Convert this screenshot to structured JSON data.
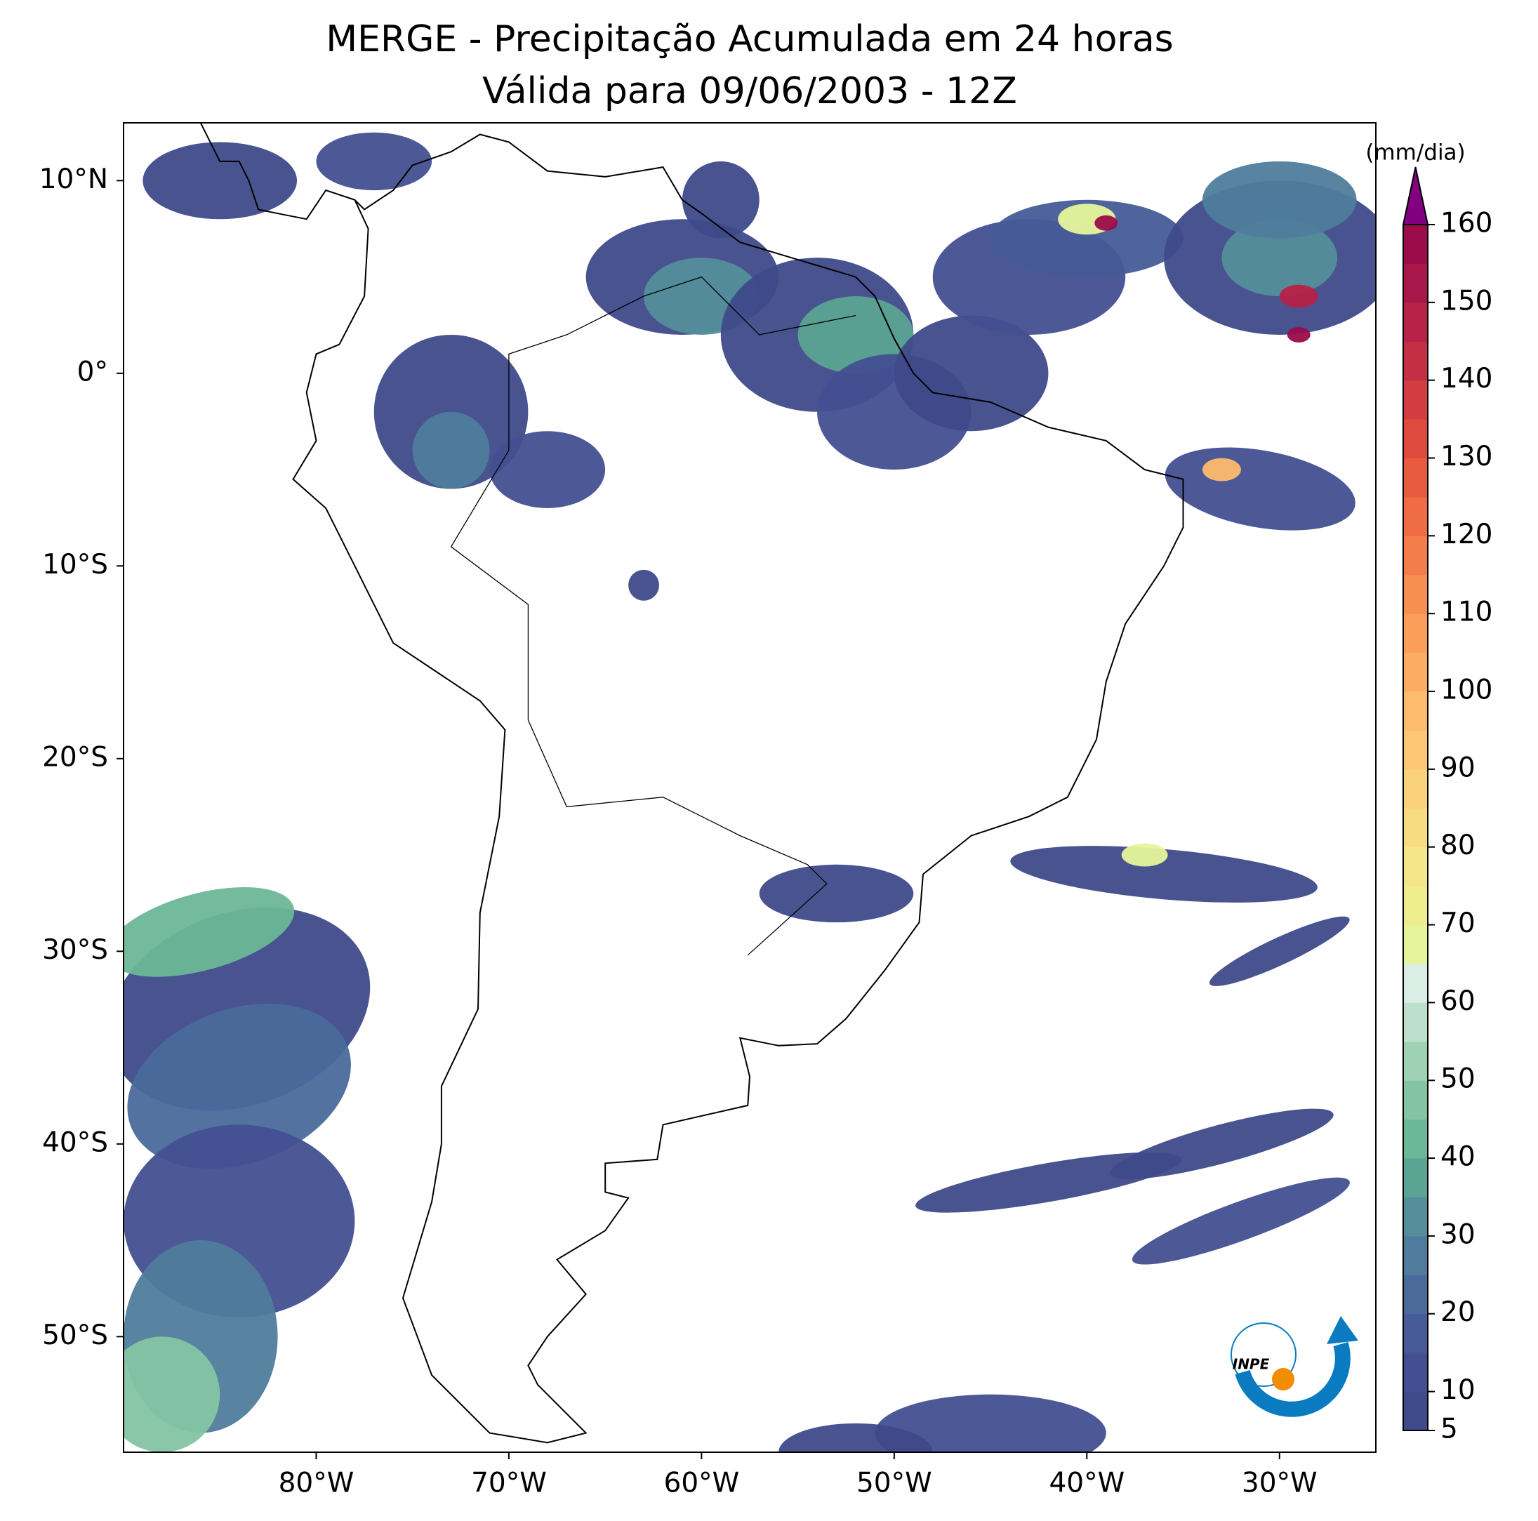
{
  "chart_data": {
    "type": "map",
    "title": "MERGE - Precipitação Acumulada em 24 horas",
    "subtitle": "Válida para 09/06/2003 - 12Z",
    "xlim": [
      -90,
      -25
    ],
    "ylim": [
      -56,
      13
    ],
    "xticks": [
      {
        "value": -80,
        "label": "80°W"
      },
      {
        "value": -70,
        "label": "70°W"
      },
      {
        "value": -60,
        "label": "60°W"
      },
      {
        "value": -50,
        "label": "50°W"
      },
      {
        "value": -40,
        "label": "40°W"
      },
      {
        "value": -30,
        "label": "30°W"
      }
    ],
    "yticks": [
      {
        "value": 10,
        "label": "10°N"
      },
      {
        "value": 0,
        "label": "0°"
      },
      {
        "value": -10,
        "label": "10°S"
      },
      {
        "value": -20,
        "label": "20°S"
      },
      {
        "value": -30,
        "label": "30°S"
      },
      {
        "value": -40,
        "label": "40°S"
      },
      {
        "value": -50,
        "label": "50°S"
      }
    ],
    "colorbar": {
      "label": "(mm/dia)",
      "lim": [
        5,
        160
      ],
      "ticks": [
        5,
        10,
        20,
        30,
        40,
        50,
        60,
        70,
        80,
        90,
        100,
        110,
        120,
        130,
        140,
        150,
        160
      ],
      "colors": [
        "#3f4a8a",
        "#434f91",
        "#465b97",
        "#4a6a9b",
        "#4f7c9c",
        "#548e9b",
        "#5ba392",
        "#6cb797",
        "#84c4a4",
        "#9fd1b4",
        "#bde0cc",
        "#dbeee5",
        "#e6f59a",
        "#eeee8e",
        "#f5e68a",
        "#f8dc82",
        "#fbd27c",
        "#fdc776",
        "#fdbb6c",
        "#fdad63",
        "#fb9e59",
        "#f88f52",
        "#f47e4b",
        "#ef6c45",
        "#e85b3f",
        "#de4b3e",
        "#d23d41",
        "#c52f45",
        "#b62248",
        "#a8164a",
        "#9a0c4a"
      ],
      "extend_color": "#800080"
    },
    "logo_text": "INPE"
  }
}
